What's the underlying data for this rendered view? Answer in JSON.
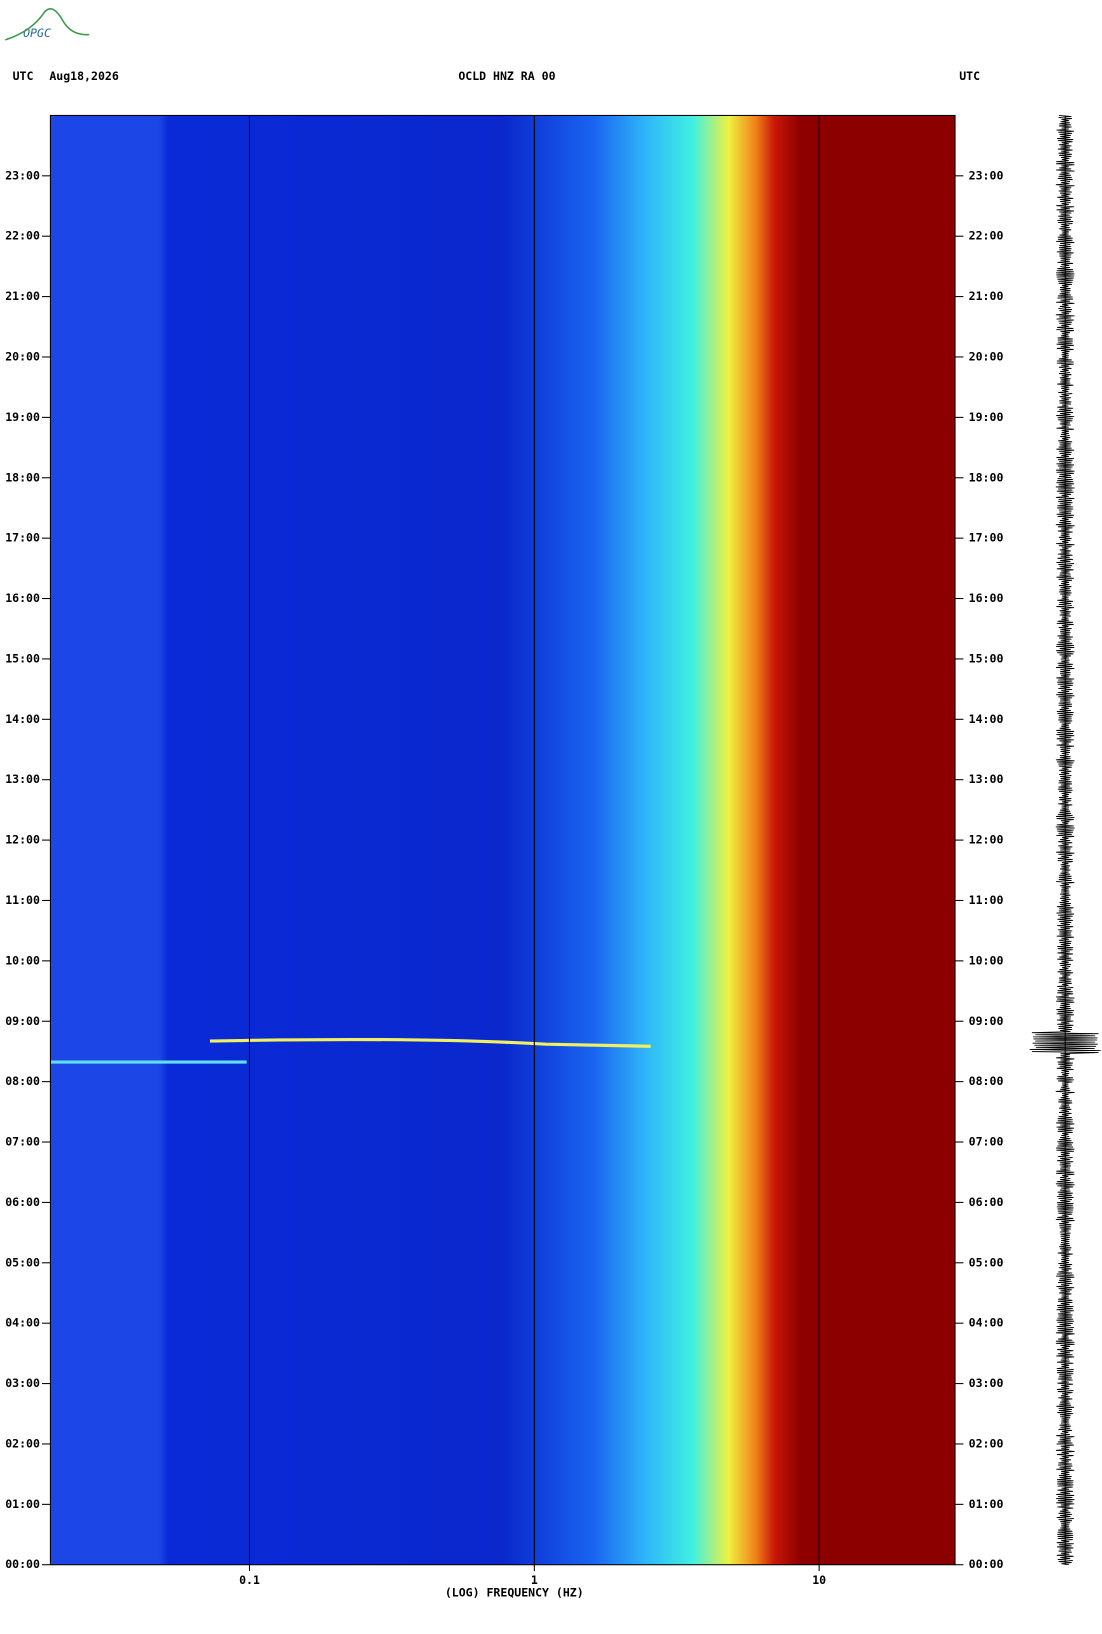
{
  "logo": "OPGC",
  "chart_data": {
    "type": "spectrogram",
    "title": "OCLD HNZ RA 00",
    "date": "Aug18,2026",
    "y_label_left": "UTC",
    "y_label_right": "UTC",
    "xlabel": "(LOG) FREQUENCY (HZ)",
    "xscale": "log",
    "xlim": [
      0.02,
      30
    ],
    "xticks": [
      0.1,
      1,
      10
    ],
    "ylim": [
      0,
      24
    ],
    "yticks": [
      {
        "value": 0,
        "label": "00:00"
      },
      {
        "value": 1,
        "label": "01:00"
      },
      {
        "value": 2,
        "label": "02:00"
      },
      {
        "value": 3,
        "label": "03:00"
      },
      {
        "value": 4,
        "label": "04:00"
      },
      {
        "value": 5,
        "label": "05:00"
      },
      {
        "value": 6,
        "label": "06:00"
      },
      {
        "value": 7,
        "label": "07:00"
      },
      {
        "value": 8,
        "label": "08:00"
      },
      {
        "value": 9,
        "label": "09:00"
      },
      {
        "value": 10,
        "label": "10:00"
      },
      {
        "value": 11,
        "label": "11:00"
      },
      {
        "value": 12,
        "label": "12:00"
      },
      {
        "value": 13,
        "label": "13:00"
      },
      {
        "value": 14,
        "label": "14:00"
      },
      {
        "value": 15,
        "label": "15:00"
      },
      {
        "value": 16,
        "label": "16:00"
      },
      {
        "value": 17,
        "label": "17:00"
      },
      {
        "value": 18,
        "label": "18:00"
      },
      {
        "value": 19,
        "label": "19:00"
      },
      {
        "value": 20,
        "label": "20:00"
      },
      {
        "value": 21,
        "label": "21:00"
      },
      {
        "value": 22,
        "label": "22:00"
      },
      {
        "value": 23,
        "label": "23:00"
      }
    ],
    "grid": true
  }
}
